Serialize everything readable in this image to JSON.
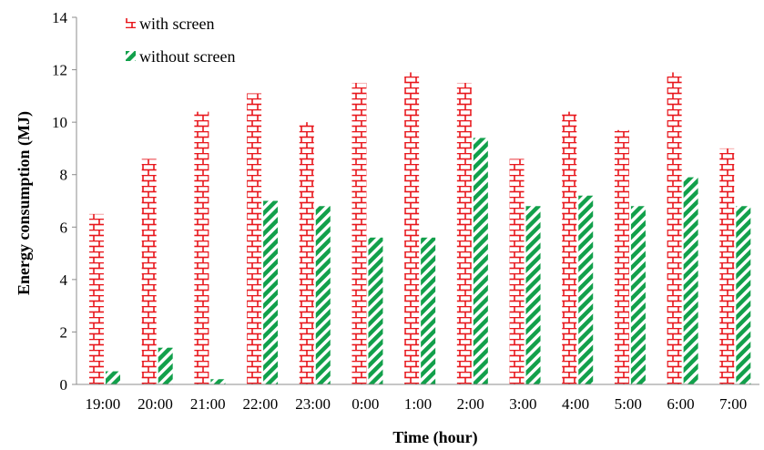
{
  "chart_data": {
    "type": "bar",
    "title": "",
    "xlabel": "Time (hour)",
    "ylabel": "Energy consumption (MJ)",
    "ylim": [
      0,
      14
    ],
    "yticks": [
      0,
      2,
      4,
      6,
      8,
      10,
      12,
      14
    ],
    "grid": false,
    "legend_position": "top-left",
    "categories": [
      "19:00",
      "20:00",
      "21:00",
      "22:00",
      "23:00",
      "0:00",
      "1:00",
      "2:00",
      "3:00",
      "4:00",
      "5:00",
      "6:00",
      "7:00"
    ],
    "series": [
      {
        "name": "with screen",
        "color": "#e8151b",
        "pattern": "brick",
        "values": [
          6.5,
          8.6,
          10.4,
          11.1,
          10.0,
          11.5,
          11.9,
          11.5,
          8.6,
          10.4,
          9.7,
          11.9,
          9.0
        ]
      },
      {
        "name": "without screen",
        "color": "#12a04b",
        "pattern": "diagonal-stripes",
        "values": [
          0.5,
          1.4,
          0.2,
          7.0,
          6.8,
          5.6,
          5.6,
          9.4,
          6.8,
          7.2,
          6.8,
          7.9,
          6.8
        ]
      }
    ]
  }
}
